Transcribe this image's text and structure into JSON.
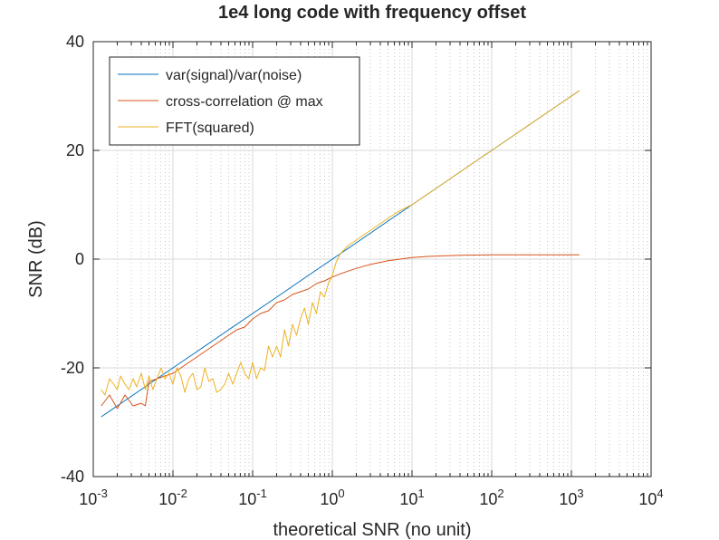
{
  "chart_data": {
    "type": "line",
    "title": "1e4 long code with frequency offset",
    "xlabel": "theoretical SNR (no unit)",
    "ylabel": "SNR (dB)",
    "xscale": "log",
    "xlim": [
      0.001,
      10000
    ],
    "ylim": [
      -40,
      40
    ],
    "grid": "on (major solid, minor dotted on x)",
    "legend_position": "top-left",
    "xticks": [
      {
        "base": "10",
        "exp": "-3"
      },
      {
        "base": "10",
        "exp": "-2"
      },
      {
        "base": "10",
        "exp": "-1"
      },
      {
        "base": "10",
        "exp": "0"
      },
      {
        "base": "10",
        "exp": "1"
      },
      {
        "base": "10",
        "exp": "2"
      },
      {
        "base": "10",
        "exp": "3"
      },
      {
        "base": "10",
        "exp": "4"
      }
    ],
    "yticks": [
      "-40",
      "-20",
      "0",
      "20",
      "40"
    ],
    "series": [
      {
        "name": "var(signal)/var(noise)",
        "color": "#0072bd",
        "x": [
          0.00126,
          0.002,
          0.00316,
          0.005,
          0.00794,
          0.0126,
          0.02,
          0.0316,
          0.05,
          0.0794,
          0.126,
          0.2,
          0.316,
          0.5,
          0.794,
          1.26,
          2,
          3.16,
          5,
          7.94,
          12.6,
          20,
          31.6,
          50,
          79.4,
          126,
          200,
          316,
          501,
          794,
          1259
        ],
        "y": [
          -29,
          -27,
          -25,
          -23,
          -21,
          -19,
          -17,
          -15,
          -13,
          -11,
          -9,
          -7,
          -5,
          -3,
          -1,
          1,
          3,
          5,
          7,
          9,
          11,
          13,
          15,
          17,
          19,
          21,
          23,
          25,
          27,
          29,
          31
        ]
      },
      {
        "name": "cross-correlation @ max",
        "color": "#d95319",
        "x": [
          0.00126,
          0.0016,
          0.002,
          0.0025,
          0.00316,
          0.004,
          0.0045,
          0.005,
          0.0063,
          0.00794,
          0.01,
          0.0126,
          0.0158,
          0.02,
          0.0251,
          0.0316,
          0.0398,
          0.05,
          0.0631,
          0.0794,
          0.1,
          0.126,
          0.158,
          0.2,
          0.251,
          0.316,
          0.398,
          0.5,
          0.631,
          0.794,
          1,
          1.26,
          1.58,
          2,
          2.51,
          3.16,
          3.98,
          5,
          6.31,
          7.94,
          10,
          15.8,
          25.1,
          39.8,
          63.1,
          100,
          200,
          398,
          794,
          1259
        ],
        "y": [
          -27,
          -25,
          -27.5,
          -25,
          -27,
          -26.5,
          -27,
          -22.5,
          -22,
          -21.5,
          -21,
          -20,
          -19,
          -18,
          -17,
          -16,
          -15,
          -14,
          -13,
          -12.5,
          -11,
          -10,
          -9.5,
          -8,
          -7.5,
          -6.5,
          -6,
          -5.5,
          -4.5,
          -4,
          -3.3,
          -2.7,
          -2.2,
          -1.7,
          -1.3,
          -0.9,
          -0.6,
          -0.3,
          -0.1,
          0.1,
          0.3,
          0.5,
          0.6,
          0.7,
          0.75,
          0.8,
          0.8,
          0.8,
          0.8,
          0.8
        ]
      },
      {
        "name": "FFT(squared)",
        "color": "#edb120",
        "x": [
          0.00126,
          0.0014,
          0.0016,
          0.0018,
          0.002,
          0.0022,
          0.0025,
          0.0028,
          0.00316,
          0.0035,
          0.004,
          0.0045,
          0.005,
          0.0056,
          0.0063,
          0.0071,
          0.00794,
          0.0089,
          0.01,
          0.0112,
          0.0126,
          0.0141,
          0.0158,
          0.0178,
          0.02,
          0.0224,
          0.0251,
          0.0282,
          0.0316,
          0.0355,
          0.0398,
          0.0447,
          0.05,
          0.0562,
          0.0631,
          0.0708,
          0.0794,
          0.0891,
          0.1,
          0.112,
          0.126,
          0.141,
          0.158,
          0.178,
          0.2,
          0.224,
          0.251,
          0.282,
          0.316,
          0.355,
          0.398,
          0.447,
          0.5,
          0.562,
          0.631,
          0.708,
          0.794,
          0.891,
          1,
          1.12,
          1.26,
          1.58,
          2,
          2.51,
          3.16,
          3.98,
          5,
          6.31,
          7.94,
          10,
          15.8,
          25.1,
          39.8,
          63.1,
          100,
          158,
          251,
          398,
          631,
          1000,
          1259
        ],
        "y": [
          -24,
          -25,
          -22,
          -23,
          -24,
          -21.5,
          -23,
          -24,
          -22,
          -23.5,
          -21,
          -24,
          -21.5,
          -24,
          -22,
          -20,
          -22,
          -21,
          -23,
          -20,
          -21.5,
          -24.5,
          -22,
          -21,
          -24,
          -23.5,
          -20,
          -22.5,
          -22,
          -24.5,
          -24,
          -23,
          -21,
          -23,
          -21,
          -19,
          -21,
          -22,
          -19,
          -22,
          -20,
          -20.5,
          -16,
          -18,
          -16,
          -18,
          -13,
          -16,
          -12,
          -14,
          -11,
          -9,
          -12,
          -8,
          -10,
          -6,
          -7,
          -4.5,
          -3,
          -0.5,
          1,
          2.5,
          3.5,
          4.5,
          5.5,
          6.5,
          7.5,
          8.5,
          9.3,
          10,
          12,
          14,
          16,
          18,
          20,
          22,
          24,
          26,
          28,
          30,
          31
        ]
      }
    ]
  }
}
